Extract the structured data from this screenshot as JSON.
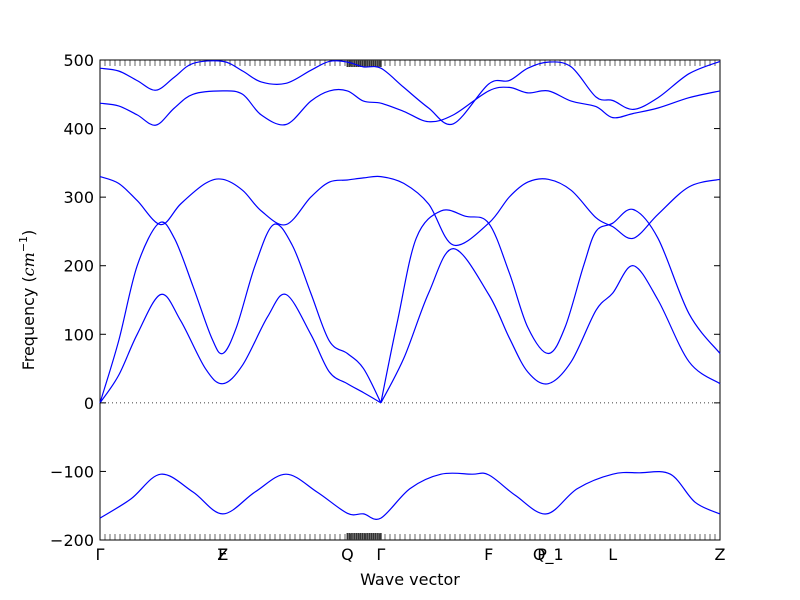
{
  "chart_data": {
    "type": "line",
    "xlabel": "Wave vector",
    "ylabel": "Frequency (cm^-1)",
    "ylabel_parts": {
      "text": "Frequency (",
      "unit": "cm",
      "exponent": "−1",
      "close": ")"
    },
    "ylim": [
      -200,
      500
    ],
    "yticks": [
      -200,
      -100,
      0,
      100,
      200,
      300,
      400,
      500
    ],
    "x_path": [
      {
        "label": "Γ",
        "pos": 0.0
      },
      {
        "label": "F",
        "pos": 0.198
      },
      {
        "label": "Z",
        "pos": 0.198
      },
      {
        "label": "Q",
        "pos": 0.399
      },
      {
        "label": "Γ",
        "pos": 0.453
      },
      {
        "label": "F",
        "pos": 0.627
      },
      {
        "label": "P",
        "pos": 0.713
      },
      {
        "label": "Q_1",
        "pos": 0.723
      },
      {
        "label": "L",
        "pos": 0.827
      },
      {
        "label": "Z",
        "pos": 1.0
      }
    ],
    "zero_line": true,
    "grid": false,
    "line_color": "#0000ff",
    "series": [
      {
        "x": [
          0,
          0.05,
          0.098,
          0.15,
          0.198,
          0.25,
          0.3,
          0.35,
          0.399,
          0.425,
          0.453,
          0.5,
          0.55,
          0.6,
          0.627,
          0.67,
          0.72,
          0.77,
          0.827,
          0.87,
          0.92,
          0.96,
          1.0
        ],
        "y": [
          -168,
          -140,
          -104,
          -130,
          -162,
          -130,
          -104,
          -130,
          -161,
          -162,
          -168,
          -125,
          -104,
          -104,
          -105,
          -135,
          -162,
          -125,
          -104,
          -102,
          -104,
          -145,
          -162
        ]
      },
      {
        "x": [
          0,
          0.03,
          0.06,
          0.098,
          0.13,
          0.17,
          0.198,
          0.23,
          0.27,
          0.3,
          0.34,
          0.37,
          0.399,
          0.425,
          0.453
        ],
        "y": [
          0,
          40,
          100,
          158,
          120,
          50,
          28,
          55,
          125,
          158,
          100,
          45,
          28,
          15,
          0
        ]
      },
      {
        "x": [
          0.453,
          0.49,
          0.53,
          0.57,
          0.627,
          0.66,
          0.69,
          0.723,
          0.76,
          0.8,
          0.827,
          0.86,
          0.9,
          0.95,
          1.0
        ],
        "y": [
          0,
          65,
          160,
          225,
          158,
          95,
          45,
          28,
          60,
          135,
          160,
          200,
          150,
          60,
          28
        ]
      },
      {
        "x": [
          0,
          0.03,
          0.06,
          0.095,
          0.12,
          0.15,
          0.18,
          0.198,
          0.22,
          0.25,
          0.28,
          0.31,
          0.34,
          0.37,
          0.399,
          0.425,
          0.453
        ],
        "y": [
          0,
          90,
          200,
          262,
          240,
          170,
          95,
          72,
          110,
          200,
          260,
          230,
          160,
          90,
          72,
          50,
          0
        ]
      },
      {
        "x": [
          0.453,
          0.48,
          0.51,
          0.55,
          0.59,
          0.627,
          0.66,
          0.69,
          0.723,
          0.75,
          0.78,
          0.8,
          0.827,
          0.86,
          0.9,
          0.95,
          1.0
        ],
        "y": [
          0,
          120,
          240,
          280,
          272,
          262,
          190,
          110,
          72,
          110,
          200,
          250,
          262,
          282,
          240,
          130,
          72
        ]
      },
      {
        "x": [
          0,
          0.03,
          0.06,
          0.098,
          0.13,
          0.17,
          0.198,
          0.23,
          0.26,
          0.3,
          0.34,
          0.37,
          0.399,
          0.425,
          0.453,
          0.49,
          0.53,
          0.57,
          0.627,
          0.66,
          0.69,
          0.723,
          0.76,
          0.8,
          0.827,
          0.86,
          0.9,
          0.95,
          1.0
        ],
        "y": [
          330,
          320,
          295,
          260,
          290,
          320,
          326,
          310,
          280,
          260,
          300,
          322,
          325,
          328,
          330,
          320,
          290,
          230,
          262,
          300,
          322,
          326,
          310,
          270,
          257,
          240,
          275,
          315,
          326
        ]
      },
      {
        "x": [
          0,
          0.03,
          0.06,
          0.09,
          0.12,
          0.15,
          0.198,
          0.23,
          0.26,
          0.3,
          0.34,
          0.37,
          0.399,
          0.425,
          0.453,
          0.49,
          0.53,
          0.57,
          0.627,
          0.66,
          0.69,
          0.723,
          0.76,
          0.8,
          0.827,
          0.86,
          0.9,
          0.95,
          1.0
        ],
        "y": [
          437,
          433,
          420,
          405,
          430,
          450,
          455,
          450,
          420,
          406,
          440,
          455,
          455,
          440,
          437,
          425,
          410,
          420,
          455,
          460,
          452,
          455,
          440,
          432,
          416,
          422,
          430,
          445,
          455
        ]
      },
      {
        "x": [
          0,
          0.03,
          0.06,
          0.09,
          0.12,
          0.15,
          0.198,
          0.23,
          0.26,
          0.3,
          0.34,
          0.37,
          0.399,
          0.425,
          0.453,
          0.49,
          0.53,
          0.57,
          0.627,
          0.66,
          0.69,
          0.723,
          0.76,
          0.8,
          0.827,
          0.86,
          0.9,
          0.95,
          1.0
        ],
        "y": [
          488,
          484,
          470,
          456,
          475,
          495,
          498,
          484,
          468,
          466,
          485,
          498,
          497,
          490,
          488,
          460,
          430,
          407,
          465,
          470,
          488,
          497,
          490,
          446,
          441,
          428,
          445,
          480,
          498
        ]
      }
    ]
  }
}
